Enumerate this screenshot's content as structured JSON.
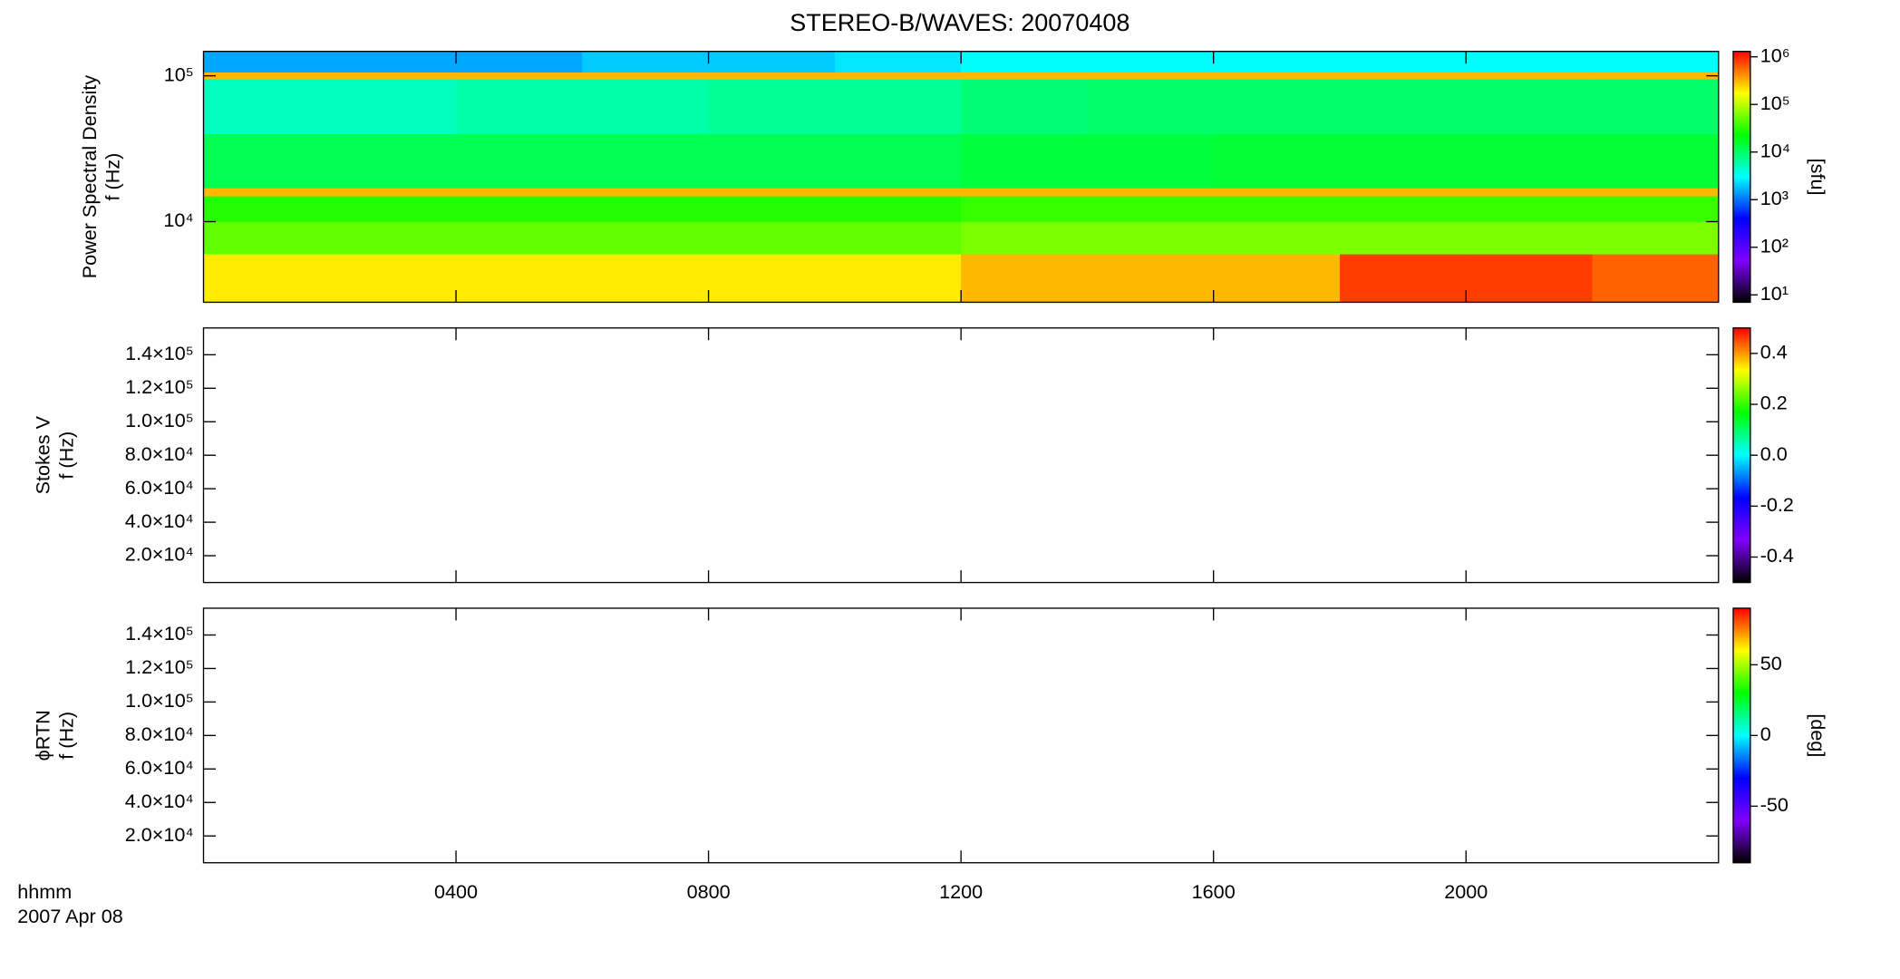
{
  "chart_data": [
    {
      "type": "heatmap",
      "title": "STEREO-B/WAVES: 20070408",
      "ylabel": [
        "Power Spectral Density",
        "f (Hz)"
      ],
      "log_y": true,
      "ylim": [
        2800,
        147000
      ],
      "yticks": [
        {
          "value": 10000,
          "label": "10⁴"
        },
        {
          "value": 100000,
          "label": "10⁵"
        }
      ],
      "x_edges": [
        0,
        120,
        240,
        360,
        480,
        600,
        720,
        840,
        960,
        1080,
        1200,
        1320,
        1440
      ],
      "y_edges": [
        2800,
        6000,
        10000,
        15000,
        17000,
        40000,
        95000,
        106000,
        147000
      ],
      "z": [
        [
          200000,
          200000,
          200000,
          200000,
          200000,
          200000,
          300000,
          300000,
          300000,
          800000,
          800000,
          600000
        ],
        [
          50000,
          50000,
          50000,
          50000,
          50000,
          50000,
          60000,
          60000,
          60000,
          60000,
          60000,
          60000
        ],
        [
          30000,
          30000,
          30000,
          30000,
          30000,
          30000,
          35000,
          35000,
          35000,
          35000,
          35000,
          35000
        ],
        [
          300000,
          300000,
          300000,
          300000,
          300000,
          300000,
          300000,
          300000,
          300000,
          300000,
          300000,
          300000
        ],
        [
          12000,
          12000,
          12000,
          12000,
          12000,
          12000,
          14000,
          14000,
          15000,
          15000,
          15000,
          15000
        ],
        [
          5000,
          5000,
          6000,
          6000,
          7000,
          7000,
          9000,
          10000,
          10000,
          10000,
          10000,
          10000
        ],
        [
          300000,
          300000,
          300000,
          300000,
          300000,
          300000,
          300000,
          300000,
          300000,
          300000,
          300000,
          300000
        ],
        [
          1500,
          1500,
          1500,
          2000,
          2000,
          2500,
          3000,
          3000,
          3000,
          3000,
          3000,
          3000
        ]
      ],
      "colorscale": [
        "#000000",
        "#7f00ff",
        "#0000ff",
        "#00ffff",
        "#00ff00",
        "#ffff00",
        "#ff0000"
      ],
      "log_z": true,
      "zlim": [
        7,
        1300000
      ],
      "zticks": [
        {
          "value": 10,
          "label": "10¹"
        },
        {
          "value": 100,
          "label": "10²"
        },
        {
          "value": 1000,
          "label": "10³"
        },
        {
          "value": 10000,
          "label": "10⁴"
        },
        {
          "value": 100000,
          "label": "10⁵"
        },
        {
          "value": 1000000,
          "label": "10⁶"
        }
      ],
      "zlabel": "[sfu]"
    },
    {
      "type": "heatmap",
      "ylabel": [
        "Stokes V",
        "f (Hz)"
      ],
      "log_y": false,
      "ylim": [
        4000,
        156000
      ],
      "yticks": [
        {
          "value": 20000,
          "label": "2.0×10⁴"
        },
        {
          "value": 40000,
          "label": "4.0×10⁴"
        },
        {
          "value": 60000,
          "label": "6.0×10⁴"
        },
        {
          "value": 80000,
          "label": "8.0×10⁴"
        },
        {
          "value": 100000,
          "label": "1.0×10⁵"
        },
        {
          "value": 120000,
          "label": "1.2×10⁵"
        },
        {
          "value": 140000,
          "label": "1.4×10⁵"
        }
      ],
      "colorscale": [
        "#000000",
        "#7f00ff",
        "#0000ff",
        "#00ffff",
        "#00ff00",
        "#ffff00",
        "#ff0000"
      ],
      "log_z": false,
      "zlim": [
        -0.5,
        0.5
      ],
      "zticks": [
        -0.4,
        -0.2,
        {
          "value": 0,
          "label": "0.0"
        },
        0.2,
        0.4
      ]
    },
    {
      "type": "heatmap",
      "ylabel": [
        "ϕRTN",
        "f (Hz)"
      ],
      "log_y": false,
      "ylim": [
        4000,
        156000
      ],
      "yticks": [
        {
          "value": 20000,
          "label": "2.0×10⁴"
        },
        {
          "value": 40000,
          "label": "4.0×10⁴"
        },
        {
          "value": 60000,
          "label": "6.0×10⁴"
        },
        {
          "value": 80000,
          "label": "8.0×10⁴"
        },
        {
          "value": 100000,
          "label": "1.0×10⁵"
        },
        {
          "value": 120000,
          "label": "1.2×10⁵"
        },
        {
          "value": 140000,
          "label": "1.4×10⁵"
        }
      ],
      "colorscale": [
        "#000000",
        "#7f00ff",
        "#0000ff",
        "#00ffff",
        "#00ff00",
        "#ffff00",
        "#ff0000"
      ],
      "log_z": false,
      "zlim": [
        -90,
        90
      ],
      "zticks": [
        -50,
        0,
        50
      ],
      "zlabel": "[deg]",
      "xlim": [
        0,
        1440
      ],
      "xticks": [
        {
          "value": 240,
          "label": "0400"
        },
        {
          "value": 480,
          "label": "0800"
        },
        {
          "value": 720,
          "label": "1200"
        },
        {
          "value": 960,
          "label": "1600"
        },
        {
          "value": 1200,
          "label": "2000"
        }
      ],
      "xlabel": "hhmm",
      "date": "2007 Apr 08"
    }
  ]
}
